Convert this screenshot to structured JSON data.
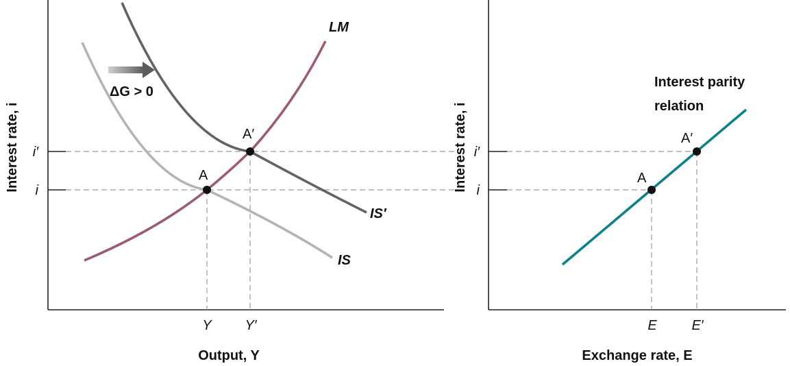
{
  "left_panel": {
    "y_axis_title": "Interest rate, i",
    "x_axis_title": "Output, Y",
    "y_ticks": [
      "i′",
      "i"
    ],
    "x_ticks": [
      "Y",
      "Y′"
    ],
    "curves": {
      "lm": {
        "label": "LM",
        "color": "#9c5a78"
      },
      "is": {
        "label": "IS",
        "color": "#b4b4b4"
      },
      "is_shifted": {
        "label": "IS′",
        "color": "#636363"
      }
    },
    "points": {
      "a": "A",
      "a_prime": "A′"
    },
    "shift_label": "ΔG > 0"
  },
  "right_panel": {
    "y_axis_title": "Interest rate, i",
    "x_axis_title": "Exchange rate, E",
    "y_ticks": [
      "i′",
      "i"
    ],
    "x_ticks": [
      "E",
      "E′"
    ],
    "curve": {
      "label_line1": "Interest parity",
      "label_line2": "relation",
      "color": "#0b8189"
    },
    "points": {
      "a": "A",
      "a_prime": "A′"
    }
  }
}
